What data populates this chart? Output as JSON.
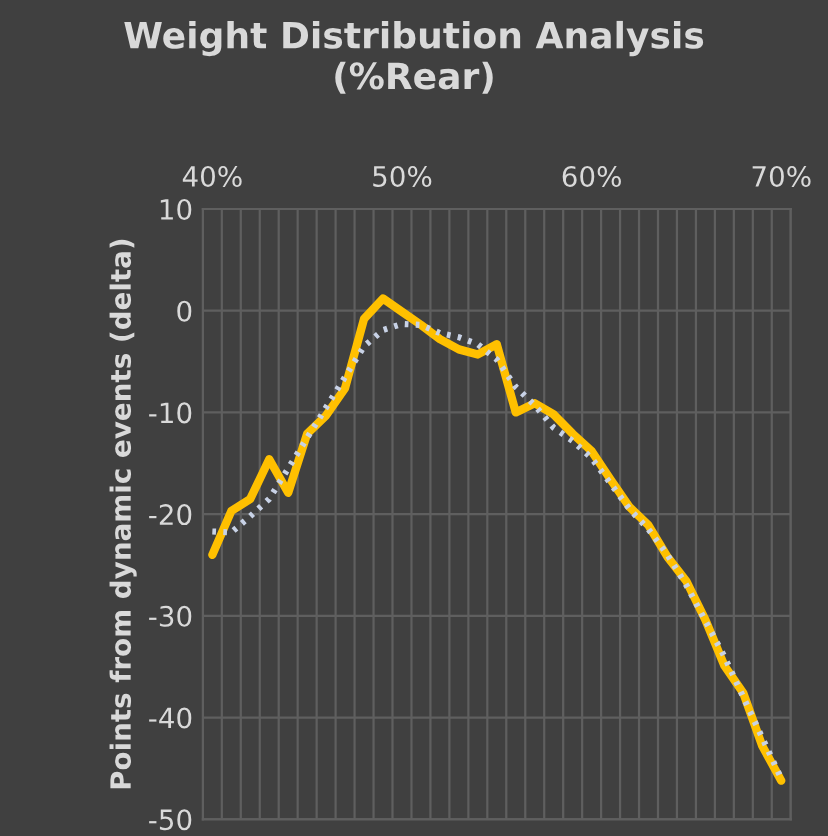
{
  "chart_data": {
    "type": "line",
    "title": "Weight Distribution Analysis\n(%Rear)",
    "ylabel": "Points from dynamic events (delta)",
    "categories": [
      "40%",
      null,
      null,
      null,
      null,
      null,
      null,
      null,
      null,
      null,
      "50%",
      null,
      null,
      null,
      null,
      null,
      null,
      null,
      null,
      null,
      "60%",
      null,
      null,
      null,
      null,
      null,
      null,
      null,
      null,
      null,
      "70%"
    ],
    "series": [
      {
        "color": "#ffc000",
        "line_style": "solid",
        "values": [
          -24.0,
          -19.7,
          -18.5,
          -14.6,
          -17.9,
          -12.1,
          -10.3,
          -7.6,
          -0.8,
          1.2,
          -0.1,
          -1.4,
          -2.8,
          -3.8,
          -4.3,
          -3.3,
          -10.0,
          -9.1,
          -10.2,
          -12.1,
          -13.8,
          -16.6,
          -19.3,
          -21.1,
          -24.2,
          -26.6,
          -30.4,
          -34.9,
          -37.6,
          -42.8,
          -46.2
        ]
      },
      {
        "color": "#c8d2e6",
        "line_style": "dotted",
        "values": [
          -21.7,
          -21.8,
          -20.2,
          -18.5,
          -15.5,
          -12.5,
          -9.5,
          -6.5,
          -3.5,
          -1.9,
          -1.3,
          -1.4,
          -2.2,
          -2.6,
          -3.3,
          -4.8,
          -7.5,
          -9.3,
          -11.5,
          -12.8,
          -14.5,
          -17.0,
          -19.5,
          -21.5,
          -24.0,
          -27.0,
          -30.5,
          -34.0,
          -38.0,
          -42.0,
          -46.0
        ]
      }
    ],
    "ylim": [
      -50,
      10
    ],
    "yticks": [
      {
        "value": -50,
        "label": "-50"
      },
      {
        "value": -40,
        "label": "-40"
      },
      {
        "value": -30,
        "label": "-30"
      },
      {
        "value": -20,
        "label": "-20"
      },
      {
        "value": -10,
        "label": "-10"
      },
      0,
      10
    ],
    "grid": true,
    "marker": "none"
  }
}
